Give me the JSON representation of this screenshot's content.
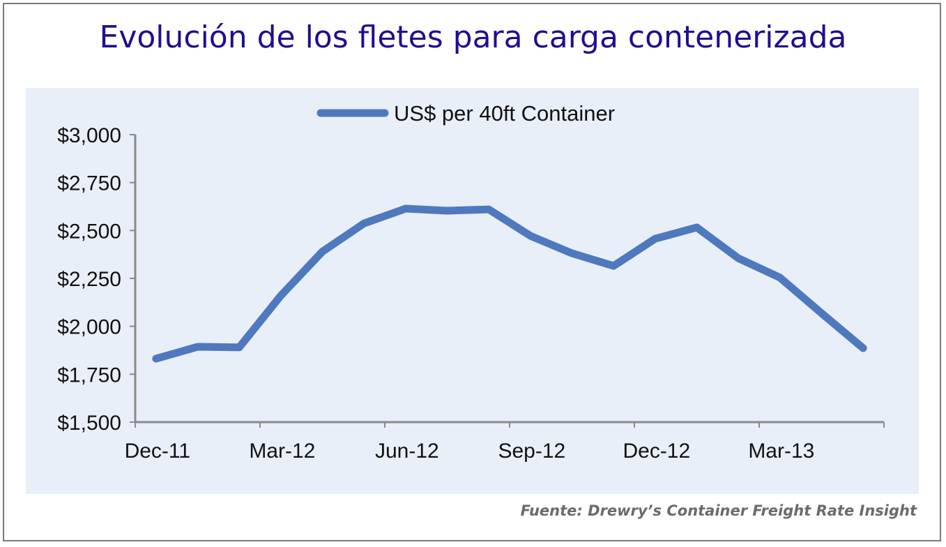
{
  "title": "Evolución de los fletes para carga contenerizada",
  "source": "Fuente: Drewry’s Container Freight Rate Insight",
  "colors": {
    "line": "#4f79be",
    "title": "#1d0f8f",
    "panel": "#e9eff8",
    "axis": "#8a8a8a"
  },
  "chart_data": {
    "type": "line",
    "title": "Evolución de los fletes para carga contenerizada",
    "xlabel": "",
    "ylabel": "",
    "ylim": [
      1500,
      3000
    ],
    "yticks": [
      "$1,500",
      "$1,750",
      "$2,000",
      "$2,250",
      "$2,500",
      "$2,750",
      "$3,000"
    ],
    "ytick_values": [
      1500,
      1750,
      2000,
      2250,
      2500,
      2750,
      3000
    ],
    "xtick_labels": [
      "Dec-11",
      "Mar-12",
      "Jun-12",
      "Sep-12",
      "Dec-12",
      "Mar-13"
    ],
    "legend": {
      "position": "top-center"
    },
    "grid": false,
    "x": [
      "Dec-11",
      "Jan-12",
      "Feb-12",
      "Mar-12",
      "Apr-12",
      "May-12",
      "Jun-12",
      "Jul-12",
      "Aug-12",
      "Sep-12",
      "Oct-12",
      "Nov-12",
      "Dec-12",
      "Jan-13",
      "Feb-13",
      "Mar-13",
      "Apr-13",
      "May-13"
    ],
    "series": [
      {
        "name": "US$ per 40ft Container",
        "values": [
          1831,
          1893,
          1890,
          2160,
          2390,
          2537,
          2614,
          2603,
          2610,
          2472,
          2381,
          2315,
          2457,
          2516,
          2355,
          2254,
          2068,
          1886
        ]
      }
    ]
  }
}
